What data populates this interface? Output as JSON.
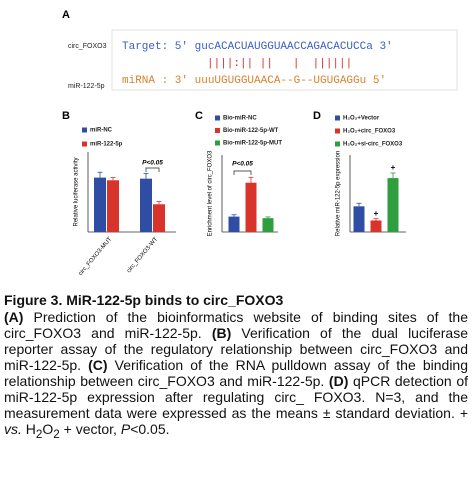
{
  "panel_a": {
    "label": "A",
    "target_name": "circ_FOXO3",
    "mirna_name": "miR-122-5p",
    "target_seq": "Target: 5' gucACACUAUGGUAACCAGACACUCCa 3'",
    "pairing": "||||:|| ||   |  ||||||",
    "mirna_seq": "miRNA : 3' uuuUGUGGUAACA--G--UGUGAGGu 5'"
  },
  "chart_data": [
    {
      "type": "grouped_bar",
      "label": "B",
      "ylabel": "Relative luciferase activity",
      "categories": [
        "circ_FOXO3-MUT",
        "circ_FOXO3-WT"
      ],
      "ylim": [
        0,
        1.5
      ],
      "series": [
        {
          "name": "miR-NC",
          "color": "#2f4ea3",
          "values": [
            1.02,
            1.0
          ],
          "errors": [
            0.1,
            0.1
          ]
        },
        {
          "name": "miR-122-5p",
          "color": "#d9342b",
          "values": [
            0.97,
            0.52
          ],
          "errors": [
            0.05,
            0.05
          ]
        }
      ],
      "annotations": [
        {
          "text": "P<0.05"
        }
      ]
    },
    {
      "type": "bar",
      "label": "C",
      "ylabel": "Enrichment level of circ_FOXO3",
      "categories": [
        "Bio-miR-NC",
        "Bio-miR-122-5p-WT",
        "Bio-miR-122-5p-MUT"
      ],
      "ylim": [
        0,
        5
      ],
      "values": [
        1.0,
        3.2,
        0.9
      ],
      "errors": [
        0.12,
        0.35,
        0.08
      ],
      "colors": [
        "#2f4ea3",
        "#d9342b",
        "#2e9e3e"
      ],
      "annotations": [
        {
          "text": "P<0.05"
        }
      ]
    },
    {
      "type": "bar",
      "label": "D",
      "ylabel": "Relative miR-122-5p expression",
      "categories": [
        "H₂O₂+Vector",
        "H₂O₂+circ_FOXO3",
        "H₂O₂+si-circ_FOXO3"
      ],
      "ylim": [
        0,
        3
      ],
      "values": [
        1.0,
        0.45,
        2.1
      ],
      "errors": [
        0.12,
        0.07,
        0.2
      ],
      "colors": [
        "#2f4ea3",
        "#d9342b",
        "#2e9e3e"
      ],
      "annotations": [
        {
          "text": "+"
        },
        {
          "text": "+"
        }
      ]
    }
  ],
  "caption": {
    "title": "Figure 3. MiR-122-5p binds to circ_FOXO3",
    "segments": [
      "(A)",
      " Prediction of the bioinformatics website of binding sites of the circ_FOXO3 and miR-122-5p. ",
      "(B)",
      " Verification of the dual luciferase reporter assay of the regulatory relationship between circ_FOXO3 and miR-122-5p. ",
      "(C)",
      " Verification of the RNA pulldown assay of the binding relationship between circ_FOXO3 and miR-122-5p. ",
      "(D)",
      " qPCR detection of miR-122-5p expression after regulating circ_ FOXO3. N=3, and the measurement data were expressed as the means ± standard deviation. + ",
      "vs.",
      " H",
      "2",
      "O",
      "2",
      " + vector, ",
      "P",
      "<0.05."
    ]
  }
}
